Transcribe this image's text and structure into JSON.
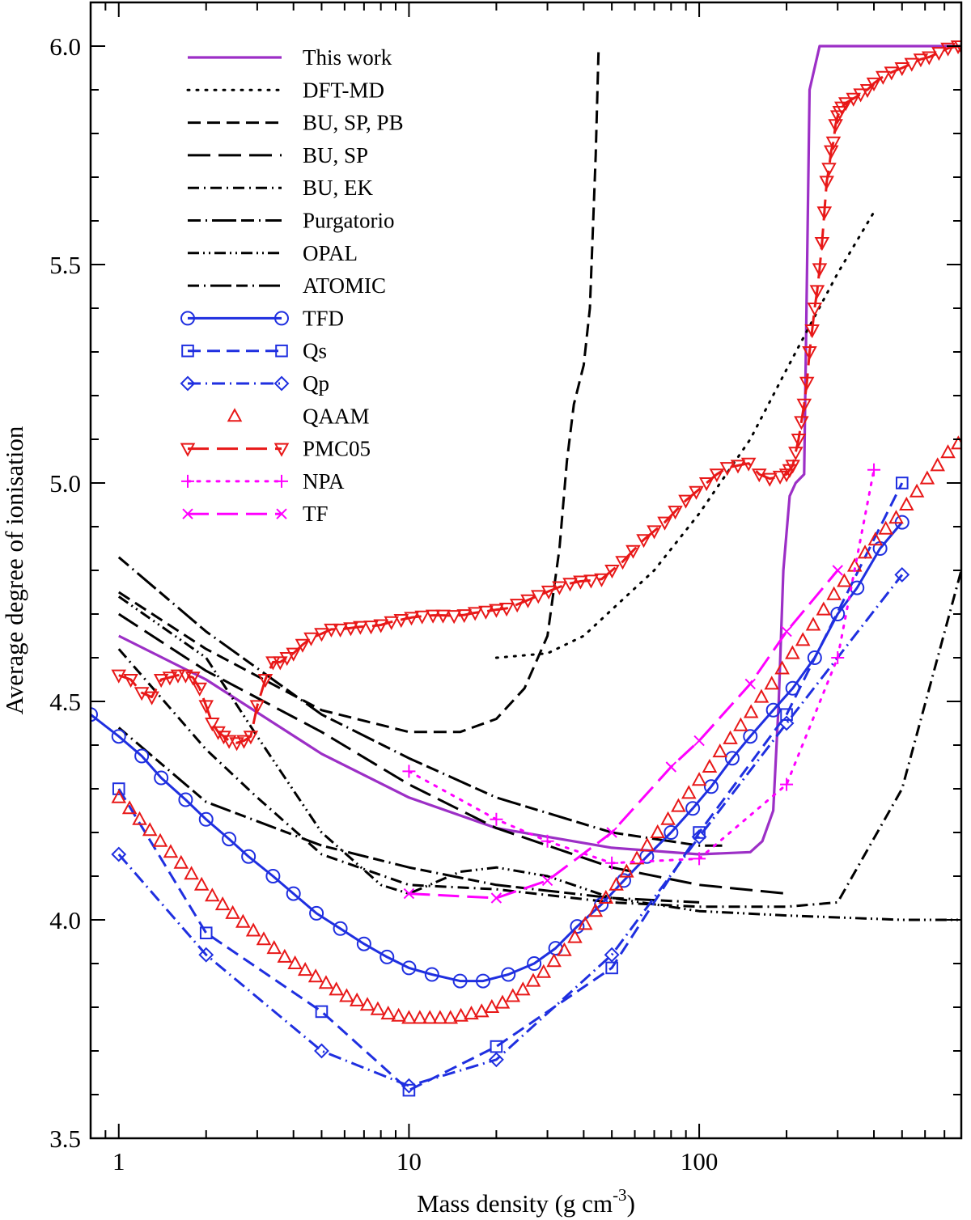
{
  "chart_data": {
    "type": "line",
    "xscale": "log",
    "xlabel": "Mass density (g cm",
    "xlabel_sup": "-3",
    "xlabel_close": ")",
    "ylabel": "Average degree of ionisation",
    "xlim": [
      0.8,
      800
    ],
    "ylim": [
      3.5,
      6.1
    ],
    "xticks": [
      1,
      10,
      100
    ],
    "xtick_labels": [
      "1",
      "10",
      "100"
    ],
    "yticks": [
      3.5,
      4.0,
      4.5,
      5.0,
      5.5,
      6.0
    ],
    "ytick_labels": [
      "3.5",
      "4.0",
      "4.5",
      "5.0",
      "5.5",
      "6.0"
    ],
    "legend_position": "top-left",
    "series": [
      {
        "name": "This work",
        "color": "#9c2fc6",
        "dash": "",
        "marker": "",
        "x": [
          1,
          2,
          5,
          10,
          20,
          50,
          100,
          150,
          165,
          180,
          188,
          195,
          205,
          215,
          230,
          240,
          260,
          300,
          800
        ],
        "y": [
          4.65,
          4.55,
          4.38,
          4.28,
          4.21,
          4.165,
          4.15,
          4.155,
          4.18,
          4.25,
          4.5,
          4.8,
          4.97,
          5.0,
          5.02,
          5.9,
          6.0,
          6.0,
          6.0
        ]
      },
      {
        "name": "DFT-MD",
        "color": "#000000",
        "dash": "2,9",
        "marker": "",
        "x": [
          20,
          30,
          40,
          50,
          70,
          100,
          150,
          200,
          300,
          400
        ],
        "y": [
          4.6,
          4.61,
          4.65,
          4.71,
          4.8,
          4.93,
          5.1,
          5.26,
          5.48,
          5.62
        ]
      },
      {
        "name": "BU, SP, PB",
        "color": "#000000",
        "dash": "16,8",
        "marker": "",
        "x": [
          1,
          2,
          5,
          10,
          15,
          20,
          25,
          30,
          33,
          35,
          37,
          40,
          42,
          44,
          45
        ],
        "y": [
          4.75,
          4.62,
          4.48,
          4.43,
          4.43,
          4.46,
          4.53,
          4.65,
          4.85,
          5.05,
          5.18,
          5.27,
          5.4,
          5.75,
          5.99
        ]
      },
      {
        "name": "BU, SP",
        "color": "#000000",
        "dash": "28,10",
        "marker": "",
        "x": [
          1,
          2,
          5,
          10,
          20,
          50,
          100,
          200
        ],
        "y": [
          4.7,
          4.57,
          4.43,
          4.31,
          4.21,
          4.12,
          4.08,
          4.06
        ]
      },
      {
        "name": "BU, EK",
        "color": "#000000",
        "dash": "14,6,2,6",
        "marker": "",
        "x": [
          1,
          2,
          3,
          5,
          10,
          20,
          50,
          100,
          200,
          300,
          500,
          800
        ],
        "y": [
          4.62,
          4.39,
          4.28,
          4.15,
          4.08,
          4.07,
          4.04,
          4.03,
          4.03,
          4.04,
          4.3,
          4.8
        ]
      },
      {
        "name": "Purgatorio",
        "color": "#000000",
        "dash": "16,6,2,6,30,6",
        "marker": "",
        "x": [
          1,
          2,
          5,
          10,
          20,
          50,
          100,
          120
        ],
        "y": [
          4.83,
          4.66,
          4.47,
          4.37,
          4.28,
          4.2,
          4.17,
          4.17
        ]
      },
      {
        "name": "OPAL",
        "color": "#000000",
        "dash": "14,5,2,5,2,5",
        "marker": "",
        "x": [
          1,
          2,
          3,
          5,
          8,
          10,
          15,
          20,
          30,
          50,
          100,
          200,
          500,
          800
        ],
        "y": [
          4.74,
          4.6,
          4.42,
          4.2,
          4.08,
          4.06,
          4.11,
          4.12,
          4.1,
          4.05,
          4.02,
          4.01,
          4.0,
          4.0
        ]
      },
      {
        "name": "ATOMIC",
        "color": "#000000",
        "dash": "14,6,2,6,26,6",
        "marker": "",
        "x": [
          1,
          2,
          5,
          10,
          20,
          50,
          100
        ],
        "y": [
          4.44,
          4.27,
          4.17,
          4.12,
          4.08,
          4.05,
          4.04
        ]
      },
      {
        "name": "TFD",
        "color": "#1f2fe0",
        "dash": "",
        "marker": "circle",
        "marker_every": 1,
        "x": [
          0.8,
          1,
          1.2,
          1.4,
          1.7,
          2,
          2.4,
          2.8,
          3.4,
          4,
          4.8,
          5.8,
          7,
          8.4,
          10,
          12,
          15,
          18,
          22,
          27,
          32,
          38,
          46,
          55,
          66,
          80,
          95,
          110,
          130,
          150,
          180,
          210,
          250,
          300,
          350,
          420,
          500
        ],
        "y": [
          4.47,
          4.42,
          4.375,
          4.325,
          4.275,
          4.23,
          4.185,
          4.145,
          4.1,
          4.06,
          4.015,
          3.98,
          3.945,
          3.915,
          3.89,
          3.875,
          3.86,
          3.86,
          3.875,
          3.9,
          3.935,
          3.985,
          4.035,
          4.09,
          4.145,
          4.2,
          4.255,
          4.305,
          4.37,
          4.42,
          4.48,
          4.53,
          4.6,
          4.7,
          4.76,
          4.85,
          4.91
        ]
      },
      {
        "name": "Qs",
        "color": "#1f2fe0",
        "dash": "16,8",
        "marker": "square",
        "marker_every": 1,
        "x": [
          1,
          2,
          5,
          10,
          20,
          50,
          100,
          200,
          500
        ],
        "y": [
          4.3,
          3.97,
          3.79,
          3.61,
          3.71,
          3.89,
          4.2,
          4.47,
          5.0
        ]
      },
      {
        "name": "Qp",
        "color": "#1f2fe0",
        "dash": "16,6,2,6",
        "marker": "diamond",
        "marker_every": 1,
        "x": [
          1,
          2,
          5,
          10,
          20,
          50,
          100,
          200,
          500
        ],
        "y": [
          4.15,
          3.92,
          3.7,
          3.62,
          3.68,
          3.92,
          4.19,
          4.45,
          4.79
        ]
      },
      {
        "name": "QAAM",
        "color": "#e81818",
        "dash": "none",
        "marker": "triangle-up",
        "marker_every": 1,
        "x": [
          1,
          1.09,
          1.18,
          1.28,
          1.39,
          1.51,
          1.64,
          1.78,
          1.93,
          2.1,
          2.28,
          2.47,
          2.68,
          2.91,
          3.16,
          3.43,
          3.73,
          4.05,
          4.39,
          4.77,
          5.18,
          5.62,
          6.1,
          6.62,
          7.19,
          7.81,
          8.48,
          9.21,
          10,
          10.9,
          11.8,
          12.8,
          13.9,
          15.1,
          16.4,
          17.8,
          19.3,
          21,
          22.8,
          24.7,
          26.8,
          29.1,
          31.6,
          34.3,
          37.3,
          40.5,
          43.9,
          47.7,
          51.8,
          56.2,
          61,
          66.2,
          71.9,
          78.1,
          84.8,
          92.1,
          100,
          108.6,
          117.9,
          128,
          139,
          150.9,
          163.8,
          177.8,
          193.1,
          209.6,
          227.6,
          247.1,
          268.3,
          291.3,
          316.2,
          343.3,
          372.8,
          404.7,
          439.4,
          477.1,
          518,
          562.3,
          610.5,
          662.8,
          719.7,
          781.3
        ],
        "y": [
          4.28,
          4.255,
          4.23,
          4.205,
          4.18,
          4.155,
          4.13,
          4.105,
          4.08,
          4.055,
          4.035,
          4.015,
          3.995,
          3.975,
          3.955,
          3.935,
          3.915,
          3.9,
          3.885,
          3.87,
          3.855,
          3.84,
          3.825,
          3.815,
          3.805,
          3.795,
          3.785,
          3.78,
          3.775,
          3.775,
          3.775,
          3.775,
          3.775,
          3.78,
          3.785,
          3.79,
          3.8,
          3.81,
          3.825,
          3.84,
          3.86,
          3.88,
          3.905,
          3.93,
          3.96,
          3.99,
          4.02,
          4.05,
          4.08,
          4.11,
          4.14,
          4.17,
          4.2,
          4.23,
          4.26,
          4.29,
          4.32,
          4.35,
          4.385,
          4.415,
          4.445,
          4.475,
          4.51,
          4.54,
          4.575,
          4.61,
          4.64,
          4.675,
          4.71,
          4.745,
          4.775,
          4.81,
          4.84,
          4.87,
          4.895,
          4.92,
          4.95,
          4.98,
          5.01,
          5.04,
          5.07,
          5.09
        ]
      },
      {
        "name": "PMC05",
        "color": "#e81818",
        "dash": "26,10",
        "marker": "triangle-down",
        "marker_every": 1,
        "x": [
          1,
          1.1,
          1.2,
          1.3,
          1.4,
          1.5,
          1.6,
          1.7,
          1.8,
          1.9,
          2.0,
          2.1,
          2.2,
          2.3,
          2.4,
          2.55,
          2.7,
          2.85,
          3.0,
          3.2,
          3.4,
          3.6,
          3.8,
          4.0,
          4.3,
          4.6,
          5.0,
          5.4,
          5.8,
          6.3,
          6.8,
          7.4,
          8.0,
          8.7,
          9.4,
          10.2,
          11.1,
          12.1,
          13.1,
          14.3,
          15.5,
          16.9,
          18.4,
          20.0,
          21.7,
          23.6,
          25.7,
          27.9,
          30.3,
          33.0,
          35.9,
          39.0,
          42.4,
          46.1,
          50.1,
          54.5,
          59.2,
          64.4,
          70.0,
          76.1,
          82.7,
          89.9,
          97.7,
          106,
          115,
          125,
          136,
          148,
          161,
          175,
          190,
          200,
          205,
          210,
          215,
          220,
          225,
          230,
          235,
          240,
          245,
          250,
          255,
          260,
          265,
          270,
          275,
          280,
          285,
          290,
          295,
          300,
          305,
          310,
          320,
          340,
          360,
          380,
          400,
          430,
          460,
          500,
          540,
          580,
          620,
          670,
          720,
          780,
          800
        ],
        "y": [
          4.56,
          4.55,
          4.52,
          4.51,
          4.55,
          4.555,
          4.56,
          4.56,
          4.555,
          4.53,
          4.49,
          4.45,
          4.43,
          4.42,
          4.41,
          4.405,
          4.41,
          4.42,
          4.49,
          4.55,
          4.59,
          4.59,
          4.6,
          4.61,
          4.63,
          4.645,
          4.655,
          4.665,
          4.665,
          4.668,
          4.671,
          4.672,
          4.675,
          4.682,
          4.687,
          4.692,
          4.695,
          4.697,
          4.697,
          4.696,
          4.698,
          4.703,
          4.706,
          4.71,
          4.713,
          4.722,
          4.732,
          4.742,
          4.752,
          4.762,
          4.77,
          4.775,
          4.777,
          4.78,
          4.8,
          4.82,
          4.845,
          4.87,
          4.89,
          4.91,
          4.935,
          4.96,
          4.98,
          5.0,
          5.02,
          5.035,
          5.04,
          5.045,
          5.02,
          5.01,
          5.015,
          5.02,
          5.03,
          5.04,
          5.07,
          5.1,
          5.14,
          5.18,
          5.23,
          5.3,
          5.35,
          5.4,
          5.44,
          5.49,
          5.55,
          5.62,
          5.69,
          5.72,
          5.76,
          5.78,
          5.82,
          5.84,
          5.85,
          5.86,
          5.87,
          5.88,
          5.89,
          5.9,
          5.915,
          5.93,
          5.94,
          5.95,
          5.96,
          5.97,
          5.975,
          5.985,
          5.995,
          6.0,
          6.0
        ]
      },
      {
        "name": "NPA",
        "color": "#ff00ff",
        "dash": "3,9",
        "marker": "plus",
        "marker_every": 1,
        "x": [
          10,
          20,
          30,
          50,
          100,
          200,
          300,
          400
        ],
        "y": [
          4.34,
          4.23,
          4.18,
          4.13,
          4.14,
          4.31,
          4.6,
          5.03
        ]
      },
      {
        "name": "TF",
        "color": "#ff00ff",
        "dash": "26,10",
        "marker": "x",
        "marker_every": 1,
        "x": [
          10,
          20,
          30,
          50,
          80,
          100,
          150,
          200,
          300
        ],
        "y": [
          4.06,
          4.05,
          4.09,
          4.2,
          4.35,
          4.41,
          4.54,
          4.66,
          4.8
        ]
      }
    ]
  }
}
